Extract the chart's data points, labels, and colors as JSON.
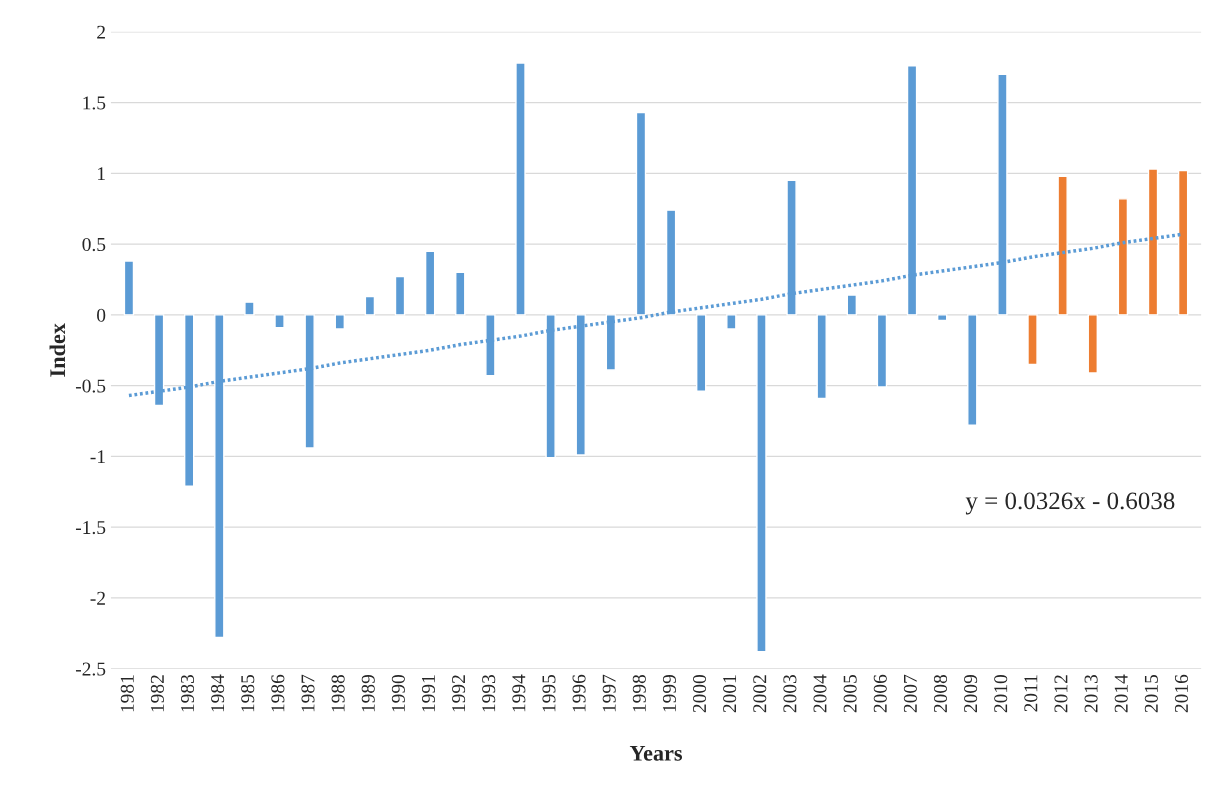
{
  "chart_data": {
    "type": "bar",
    "xlabel": "Years",
    "ylabel": "Index",
    "categories": [
      "1981",
      "1982",
      "1983",
      "1984",
      "1985",
      "1986",
      "1987",
      "1988",
      "1989",
      "1990",
      "1991",
      "1992",
      "1993",
      "1994",
      "1995",
      "1996",
      "1997",
      "1998",
      "1999",
      "2000",
      "2001",
      "2002",
      "2003",
      "2004",
      "2005",
      "2006",
      "2007",
      "2008",
      "2009",
      "2010",
      "2011",
      "2012",
      "2013",
      "2014",
      "2015",
      "2016"
    ],
    "series": [
      {
        "values": [
          0.38,
          -0.64,
          -1.21,
          -2.28,
          0.09,
          -0.09,
          -0.94,
          -0.1,
          0.13,
          0.27,
          0.45,
          0.3,
          -0.43,
          1.78,
          -1.01,
          -0.99,
          -0.39,
          1.43,
          0.74,
          -0.54,
          -0.1,
          -2.38,
          0.95,
          -0.59,
          0.14,
          -0.51,
          1.76,
          -0.04,
          -0.78,
          1.7,
          -0.35,
          0.98,
          -0.41,
          0.82,
          1.03,
          1.02
        ],
        "colors": [
          "#5b9bd5",
          "#5b9bd5",
          "#5b9bd5",
          "#5b9bd5",
          "#5b9bd5",
          "#5b9bd5",
          "#5b9bd5",
          "#5b9bd5",
          "#5b9bd5",
          "#5b9bd5",
          "#5b9bd5",
          "#5b9bd5",
          "#5b9bd5",
          "#5b9bd5",
          "#5b9bd5",
          "#5b9bd5",
          "#5b9bd5",
          "#5b9bd5",
          "#5b9bd5",
          "#5b9bd5",
          "#5b9bd5",
          "#5b9bd5",
          "#5b9bd5",
          "#5b9bd5",
          "#5b9bd5",
          "#5b9bd5",
          "#5b9bd5",
          "#5b9bd5",
          "#5b9bd5",
          "#5b9bd5",
          "#ed7d31",
          "#ed7d31",
          "#ed7d31",
          "#ed7d31",
          "#ed7d31",
          "#ed7d31"
        ]
      },
      {
        "type": "line",
        "values": [
          -0.57,
          -0.54,
          -0.51,
          -0.47,
          -0.44,
          -0.41,
          -0.38,
          -0.34,
          -0.31,
          -0.28,
          -0.25,
          -0.21,
          -0.18,
          -0.15,
          -0.11,
          -0.08,
          -0.05,
          -0.02,
          0.02,
          0.05,
          0.08,
          0.11,
          0.15,
          0.18,
          0.21,
          0.24,
          0.28,
          0.31,
          0.34,
          0.37,
          0.41,
          0.44,
          0.47,
          0.51,
          0.54,
          0.57
        ],
        "color": "#5b9bd5",
        "line_style": "dotted"
      }
    ],
    "ylim": [
      -2.5,
      2
    ],
    "yticks": [
      -2.5,
      -2,
      -1.5,
      -1,
      -0.5,
      0,
      0.5,
      1,
      1.5,
      2
    ],
    "grid": "y",
    "legend": false,
    "annotations": [
      "y = 0.0326x - 0.6038"
    ]
  }
}
